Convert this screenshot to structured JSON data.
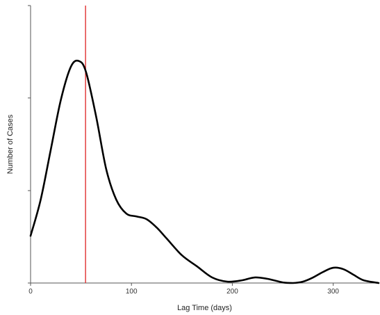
{
  "chart_data": {
    "type": "line",
    "title": "",
    "xlabel": "Lag Time (days)",
    "ylabel": "Number of Cases",
    "xlim": [
      0,
      345
    ],
    "ylim": [
      0,
      1
    ],
    "x_ticks": [
      0,
      100,
      200,
      300
    ],
    "x_tick_labels": [
      "0",
      "100",
      "200",
      "300"
    ],
    "y_ticks": [
      0,
      0.333,
      0.667,
      1.0
    ],
    "y_tick_labels": [],
    "grid": false,
    "series": [
      {
        "name": "",
        "color": "#000000",
        "x": [
          0,
          10,
          20,
          30,
          40,
          48,
          55,
          65,
          75,
          85,
          95,
          105,
          115,
          125,
          135,
          150,
          165,
          180,
          195,
          210,
          222,
          235,
          250,
          260,
          270,
          280,
          290,
          300,
          310,
          320,
          330,
          345
        ],
        "y": [
          0.17,
          0.3,
          0.48,
          0.66,
          0.78,
          0.8,
          0.76,
          0.6,
          0.41,
          0.3,
          0.25,
          0.24,
          0.23,
          0.2,
          0.16,
          0.1,
          0.06,
          0.02,
          0.005,
          0.01,
          0.02,
          0.015,
          0.002,
          0.0,
          0.005,
          0.02,
          0.04,
          0.055,
          0.05,
          0.03,
          0.01,
          0.0
        ]
      }
    ],
    "reference_lines": [
      {
        "axis": "x",
        "value": 54.5,
        "color": "#e03030"
      }
    ]
  }
}
